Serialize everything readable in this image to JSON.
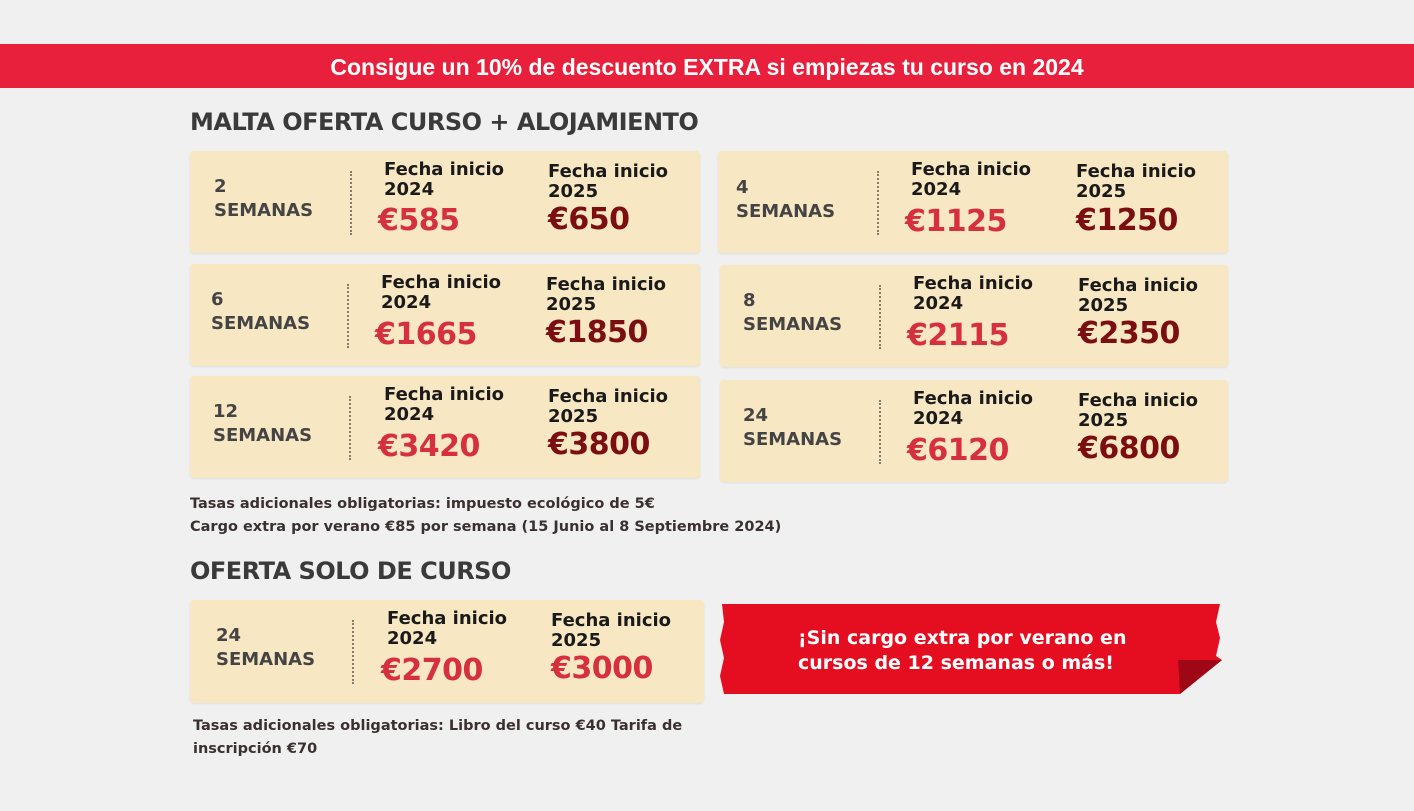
{
  "banner": {
    "text": "Consigue un 10% de descuento EXTRA si empiezas tu curso en 2024"
  },
  "malta_section": {
    "title": "MALTA OFERTA CURSO + ALOJAMIENTO",
    "cards": [
      {
        "weeks_num": "2",
        "weeks_unit": "SEMANAS",
        "label_2024": "Fecha inicio 2024",
        "price_2024": "€585",
        "label_2025": "Fecha inicio 2025",
        "price_2025": "€650"
      },
      {
        "weeks_num": "4",
        "weeks_unit": "SEMANAS",
        "label_2024": "Fecha inicio 2024",
        "price_2024": "€1125",
        "label_2025": "Fecha inicio 2025",
        "price_2025": "€1250"
      },
      {
        "weeks_num": "6",
        "weeks_unit": "SEMANAS",
        "label_2024": "Fecha inicio 2024",
        "price_2024": "€1665",
        "label_2025": "Fecha inicio 2025",
        "price_2025": "€1850"
      },
      {
        "weeks_num": "8",
        "weeks_unit": "SEMANAS",
        "label_2024": "Fecha inicio 2024",
        "price_2024": "€2115",
        "label_2025": "Fecha inicio 2025",
        "price_2025": "€2350"
      },
      {
        "weeks_num": "12",
        "weeks_unit": "SEMANAS",
        "label_2024": "Fecha inicio 2024",
        "price_2024": "€3420",
        "label_2025": "Fecha inicio 2025",
        "price_2025": "€3800"
      },
      {
        "weeks_num": "24",
        "weeks_unit": "SEMANAS",
        "label_2024": "Fecha inicio 2024",
        "price_2024": "€6120",
        "label_2025": "Fecha inicio 2025",
        "price_2025": "€6800"
      }
    ],
    "notes": [
      "Tasas adicionales obligatorias: impuesto ecológico de 5€",
      "Cargo extra por verano €85 por semana (15 Junio al 8 Septiembre 2024)"
    ]
  },
  "course_section": {
    "title": "OFERTA SOLO DE CURSO",
    "card": {
      "weeks_num": "24",
      "weeks_unit": "SEMANAS",
      "label_2024": "Fecha inicio 2024",
      "price_2024": "€2700",
      "label_2025": "Fecha inicio 2025",
      "price_2025": "€3000"
    },
    "notes": [
      "Tasas adicionales obligatorias: Libro del curso €40 Tarifa de",
      "inscripción €70"
    ]
  },
  "ribbon": {
    "line1": "¡Sin cargo extra por verano en",
    "line2": "cursos de 12 semanas o más!"
  },
  "colors": {
    "banner_red": "#e8203c",
    "card_bg": "#f8e7c3",
    "price_2024": "#d5303b",
    "price_2025": "#7a0e10",
    "ribbon_red": "#e50d20"
  }
}
